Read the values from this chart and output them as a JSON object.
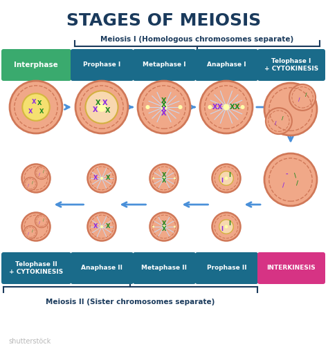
{
  "title": "STAGES OF MEIOSIS",
  "title_color": "#1a3a5c",
  "background_color": "#ffffff",
  "subtitle_meiosis1": "Meiosis I (Homologous chromosomes separate)",
  "subtitle_meiosis2": "Meiosis II (Sister chromosomes separate)",
  "row1_labels": [
    "Interphase",
    "Prophase I",
    "Metaphase I",
    "Anaphase I",
    "Telophase I\n+ CYTOKINESIS"
  ],
  "row2_labels": [
    "Telophase II\n+ CYTOKINESIS",
    "Anaphase II",
    "Metaphase II",
    "Prophase II",
    "INTERKINESIS"
  ],
  "label_bg_colors": [
    "#3aaa6e",
    "#1a6b8a",
    "#1a6b8a",
    "#1a6b8a",
    "#1a6b8a"
  ],
  "label_bg_colors2": [
    "#1a6b8a",
    "#1a6b8a",
    "#1a6b8a",
    "#1a6b8a",
    "#d63384"
  ],
  "label_text_color": "#ffffff",
  "cell_color": "#f0a888",
  "cell_edge_color": "#d07858",
  "nucleus_color": "#f8d8b0",
  "arrow_color": "#4a90d9",
  "brace_color": "#1a3a5c"
}
